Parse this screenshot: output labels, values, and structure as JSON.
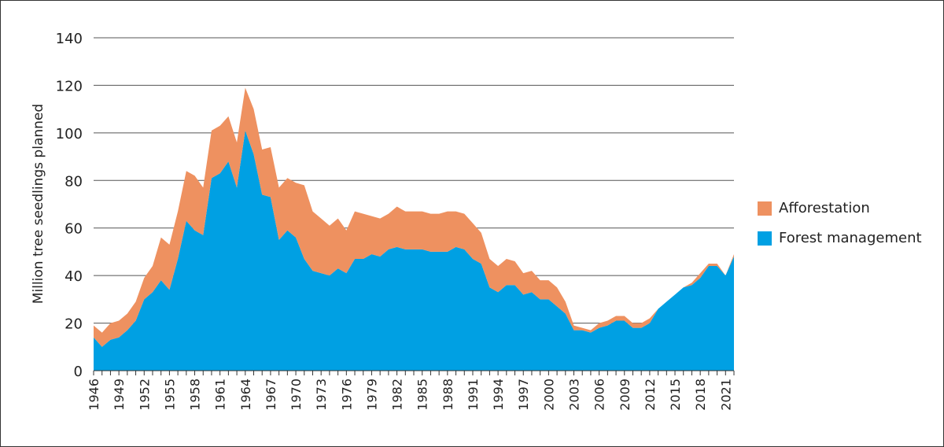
{
  "chart_data": {
    "type": "area",
    "stacked": true,
    "title": "",
    "xlabel": "",
    "ylabel": "Million tree seedlings planned",
    "ylim": [
      0,
      140
    ],
    "yticks": [
      0,
      20,
      40,
      60,
      80,
      100,
      120,
      140
    ],
    "xlim": [
      1946,
      2022
    ],
    "xtick_labels": [
      "1946",
      "1949",
      "1952",
      "1955",
      "1958",
      "1961",
      "1964",
      "1967",
      "1970",
      "1973",
      "1976",
      "1979",
      "1982",
      "1985",
      "1988",
      "1991",
      "1994",
      "1997",
      "2000",
      "2003",
      "2006",
      "2009",
      "2012",
      "2015",
      "2018",
      "2021"
    ],
    "grid": "horizontal",
    "legend_position": "right",
    "x": [
      1946,
      1947,
      1948,
      1949,
      1950,
      1951,
      1952,
      1953,
      1954,
      1955,
      1956,
      1957,
      1958,
      1959,
      1960,
      1961,
      1962,
      1963,
      1964,
      1965,
      1966,
      1967,
      1968,
      1969,
      1970,
      1971,
      1972,
      1973,
      1974,
      1975,
      1976,
      1977,
      1978,
      1979,
      1980,
      1981,
      1982,
      1983,
      1984,
      1985,
      1986,
      1987,
      1988,
      1989,
      1990,
      1991,
      1992,
      1993,
      1994,
      1995,
      1996,
      1997,
      1998,
      1999,
      2000,
      2001,
      2002,
      2003,
      2004,
      2005,
      2006,
      2007,
      2008,
      2009,
      2010,
      2011,
      2012,
      2013,
      2014,
      2015,
      2016,
      2017,
      2018,
      2019,
      2020,
      2021,
      2022
    ],
    "series": [
      {
        "name": "Forest management",
        "color": "#00a0e3",
        "values": [
          14,
          10,
          13,
          14,
          17,
          21,
          30,
          33,
          38,
          34,
          47,
          63,
          59,
          57,
          81,
          83,
          88,
          77,
          101,
          91,
          74,
          73,
          55,
          59,
          56,
          47,
          42,
          41,
          40,
          43,
          41,
          47,
          47,
          49,
          48,
          51,
          52,
          51,
          51,
          51,
          50,
          50,
          50,
          52,
          51,
          47,
          45,
          35,
          33,
          36,
          36,
          32,
          33,
          30,
          30,
          27,
          24,
          17,
          17,
          16,
          18,
          19,
          21,
          21,
          18,
          18,
          20,
          26,
          29,
          32,
          35,
          36,
          39,
          44,
          44,
          40,
          48
        ]
      },
      {
        "name": "Afforestation",
        "color": "#ee9160",
        "values": [
          5,
          6,
          7,
          7,
          7,
          8,
          9,
          11,
          18,
          19,
          20,
          21,
          23,
          20,
          20,
          20,
          19,
          19,
          18,
          19,
          19,
          21,
          22,
          22,
          23,
          31,
          25,
          23,
          21,
          21,
          18,
          20,
          19,
          16,
          16,
          15,
          17,
          16,
          16,
          16,
          16,
          16,
          17,
          15,
          15,
          15,
          13,
          12,
          11,
          11,
          10,
          9,
          9,
          8,
          8,
          8,
          5,
          2,
          1,
          1,
          2,
          2,
          2,
          2,
          2,
          2,
          2,
          0,
          0,
          0,
          0,
          1,
          2,
          1,
          1,
          0,
          1
        ]
      }
    ]
  }
}
